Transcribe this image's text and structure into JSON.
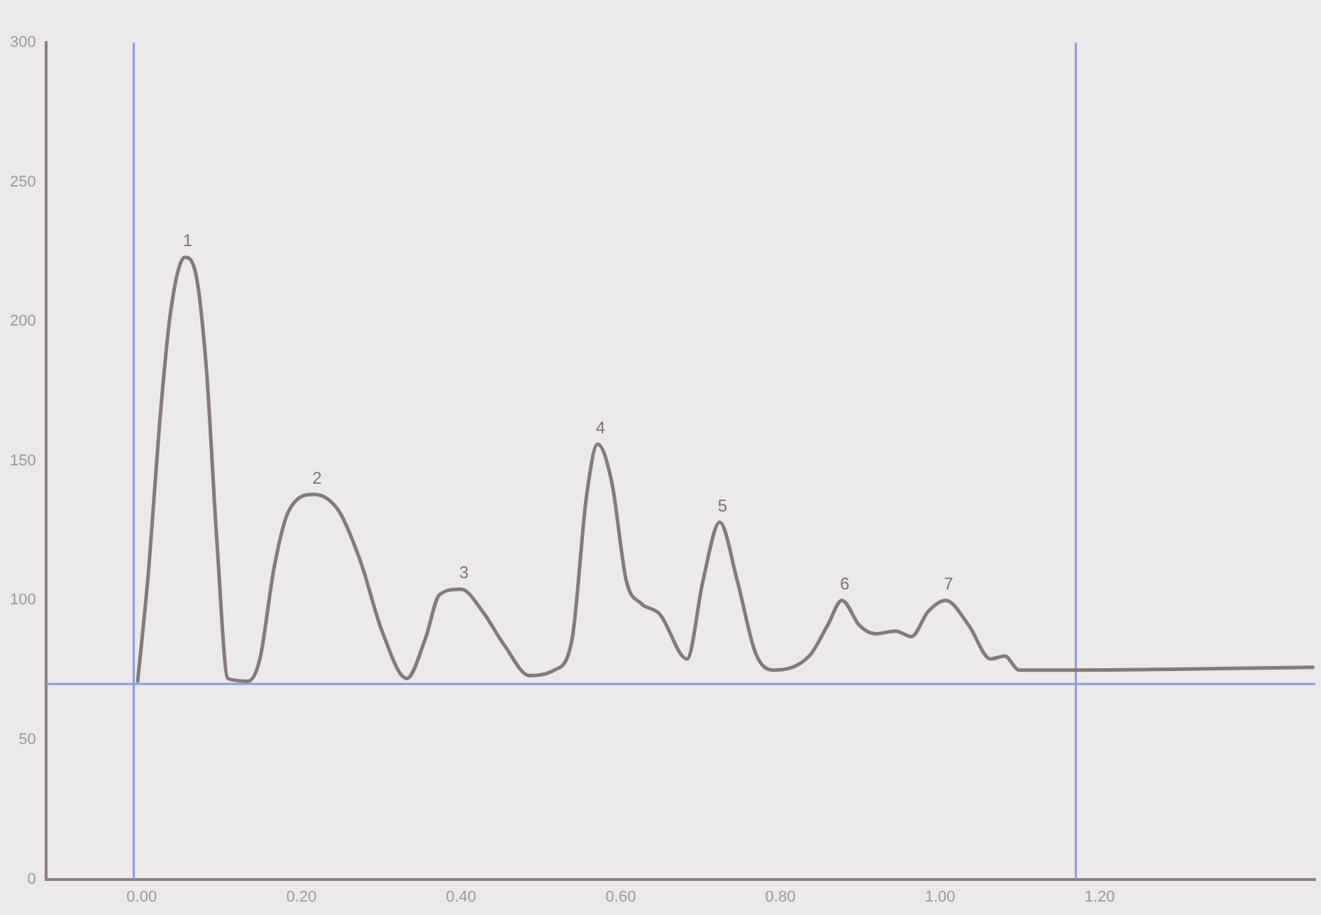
{
  "chart_data": {
    "type": "line",
    "x": [
      -0.005,
      0.009,
      0.022,
      0.036,
      0.054,
      0.067,
      0.081,
      0.094,
      0.108,
      0.133,
      0.148,
      0.166,
      0.184,
      0.216,
      0.247,
      0.274,
      0.301,
      0.332,
      0.355,
      0.373,
      0.4,
      0.427,
      0.454,
      0.486,
      0.517,
      0.539,
      0.557,
      0.571,
      0.589,
      0.607,
      0.625,
      0.649,
      0.683,
      0.703,
      0.724,
      0.746,
      0.769,
      0.791,
      0.836,
      0.859,
      0.877,
      0.899,
      0.919,
      0.944,
      0.964,
      0.985,
      1.007,
      1.036,
      1.063,
      1.081,
      1.099,
      1.171,
      1.467
    ],
    "series": [
      {
        "color": "#857a7a",
        "values": [
          71,
          112,
          162,
          203,
          223,
          218,
          183,
          122,
          72,
          71,
          79,
          112,
          132,
          138,
          132,
          114,
          89,
          72,
          86,
          102,
          104,
          96,
          84,
          73,
          75,
          86,
          137,
          156,
          142,
          107,
          99,
          95,
          79,
          107,
          128,
          107,
          81,
          75,
          80,
          91,
          100,
          91,
          88,
          89,
          87,
          96,
          100,
          91,
          79,
          80,
          75,
          75,
          76
        ]
      }
    ],
    "xlim": [
      -0.12,
      1.47
    ],
    "ylim": [
      0,
      300
    ],
    "xticks": [
      {
        "value": 0,
        "label": "0.00"
      },
      {
        "value": 0.2,
        "label": "0.20"
      },
      {
        "value": 0.4,
        "label": "0.40"
      },
      {
        "value": 0.6,
        "label": "0.60"
      },
      {
        "value": 0.8,
        "label": "0.80"
      },
      {
        "value": 1,
        "label": "1.00"
      },
      {
        "value": 1.2,
        "label": "1.20"
      }
    ],
    "yticks": [
      0,
      50,
      100,
      150,
      200,
      250,
      300
    ],
    "grid": false,
    "legend": false,
    "marker": "none",
    "line_style": "solid",
    "ref_lines": [
      {
        "axis": "y",
        "value": 70,
        "color": "#8c9be0"
      },
      {
        "axis": "x",
        "value": -0.01,
        "color": "#8c9be0"
      },
      {
        "axis": "x",
        "value": 1.17,
        "color": "#8c9be0"
      }
    ],
    "annotations": [
      {
        "text": "1",
        "x": 0.054,
        "y": 223
      },
      {
        "text": "2",
        "x": 0.216,
        "y": 138
      },
      {
        "text": "3",
        "x": 0.4,
        "y": 104
      },
      {
        "text": "4",
        "x": 0.571,
        "y": 156
      },
      {
        "text": "5",
        "x": 0.724,
        "y": 128
      },
      {
        "text": "6",
        "x": 0.877,
        "y": 100
      },
      {
        "text": "7",
        "x": 1.007,
        "y": 100
      }
    ]
  }
}
